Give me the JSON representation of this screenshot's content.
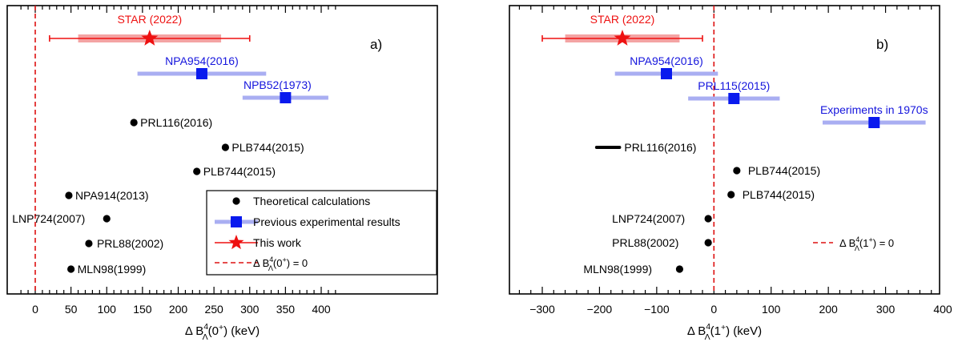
{
  "chart_data": [
    {
      "panel_label": "a)",
      "type": "scatter",
      "xlim": [
        -25,
        420
      ],
      "x_ticks": [
        0,
        50,
        100,
        150,
        200,
        250,
        300,
        350,
        400
      ],
      "x_tick_labels": [
        "0",
        "50",
        "100",
        "150",
        "200",
        "250",
        "300",
        "350",
        "400"
      ],
      "xlabel": {
        "main": "Δ B",
        "sup": "4",
        "sub": "Λ",
        "paren": "(0",
        "state_sup": "+",
        "tail": ") (keV)"
      },
      "zero_line_x": 0,
      "this_work": {
        "label": "STAR (2022)",
        "value": 160,
        "stat": [
          60,
          260
        ],
        "total": [
          20,
          300
        ]
      },
      "experiments": [
        {
          "label": "NPA954(2016)",
          "value": 233,
          "band": [
            143,
            323
          ]
        },
        {
          "label": "NPB52(1973)",
          "value": 350,
          "band": [
            290,
            410
          ]
        }
      ],
      "theory": [
        {
          "label": "PRL116(2016)",
          "value": 138
        },
        {
          "label": "PLB744(2015)",
          "value": 266
        },
        {
          "label": "PLB744(2015)",
          "value": 226
        },
        {
          "label": "NPA914(2013)",
          "value": 47
        },
        {
          "label": "LNP724(2007)",
          "value": 100
        },
        {
          "label": "PRL88(2002)",
          "value": 75
        },
        {
          "label": "MLN98(1999)",
          "value": 50
        }
      ],
      "legend": {
        "entries": [
          "Theoretical calculations",
          "Previous experimental results",
          "This work"
        ],
        "zero": {
          "main": "Δ B",
          "sup": "4",
          "sub": "Λ",
          "paren": "(0",
          "state_sup": "+",
          "tail": ") = 0"
        }
      }
    },
    {
      "panel_label": "b)",
      "type": "scatter",
      "xlim": [
        -340,
        410
      ],
      "x_ticks": [
        -300,
        -200,
        -100,
        0,
        100,
        200,
        300,
        400
      ],
      "x_tick_labels": [
        "−300",
        "−200",
        "−100",
        "0",
        "100",
        "200",
        "300",
        "400"
      ],
      "xlabel": {
        "main": "Δ B",
        "sup": "4",
        "sub": "Λ",
        "paren": "(1",
        "state_sup": "+",
        "tail": ") (keV)"
      },
      "zero_line_x": 0,
      "this_work": {
        "label": "STAR (2022)",
        "value": -160,
        "stat": [
          -260,
          -60
        ],
        "total": [
          -300,
          -20
        ]
      },
      "experiments": [
        {
          "label": "NPA954(2016)",
          "value": -83,
          "band": [
            -173,
            7
          ]
        },
        {
          "label": "PRL115(2015)",
          "value": 35,
          "band": [
            -45,
            115
          ]
        },
        {
          "label": "Experiments in 1970s",
          "value": 280,
          "band": [
            190,
            370
          ]
        }
      ],
      "theory": [
        {
          "label": "PRL116(2016)",
          "value": -185,
          "range": [
            -205,
            -165
          ]
        },
        {
          "label": "PLB744(2015)",
          "value": 40
        },
        {
          "label": "PLB744(2015)",
          "value": 30
        },
        {
          "label": "LNP724(2007)",
          "value": -10
        },
        {
          "label": "PRL88(2002)",
          "value": -10
        },
        {
          "label": "MLN98(1999)",
          "value": -60
        }
      ],
      "legend": {
        "zero": {
          "main": "Δ B",
          "sup": "4",
          "sub": "Λ",
          "paren": "(1",
          "state_sup": "+",
          "tail": ") = 0"
        }
      }
    }
  ],
  "colors": {
    "star": "#ee1111",
    "star_band": "#f4a3a3",
    "exp_marker": "#0a1aee",
    "exp_band": "#a9aef2",
    "exp_label": "#1515dd",
    "theory": "#000000",
    "zero_line": "#dd1111"
  }
}
